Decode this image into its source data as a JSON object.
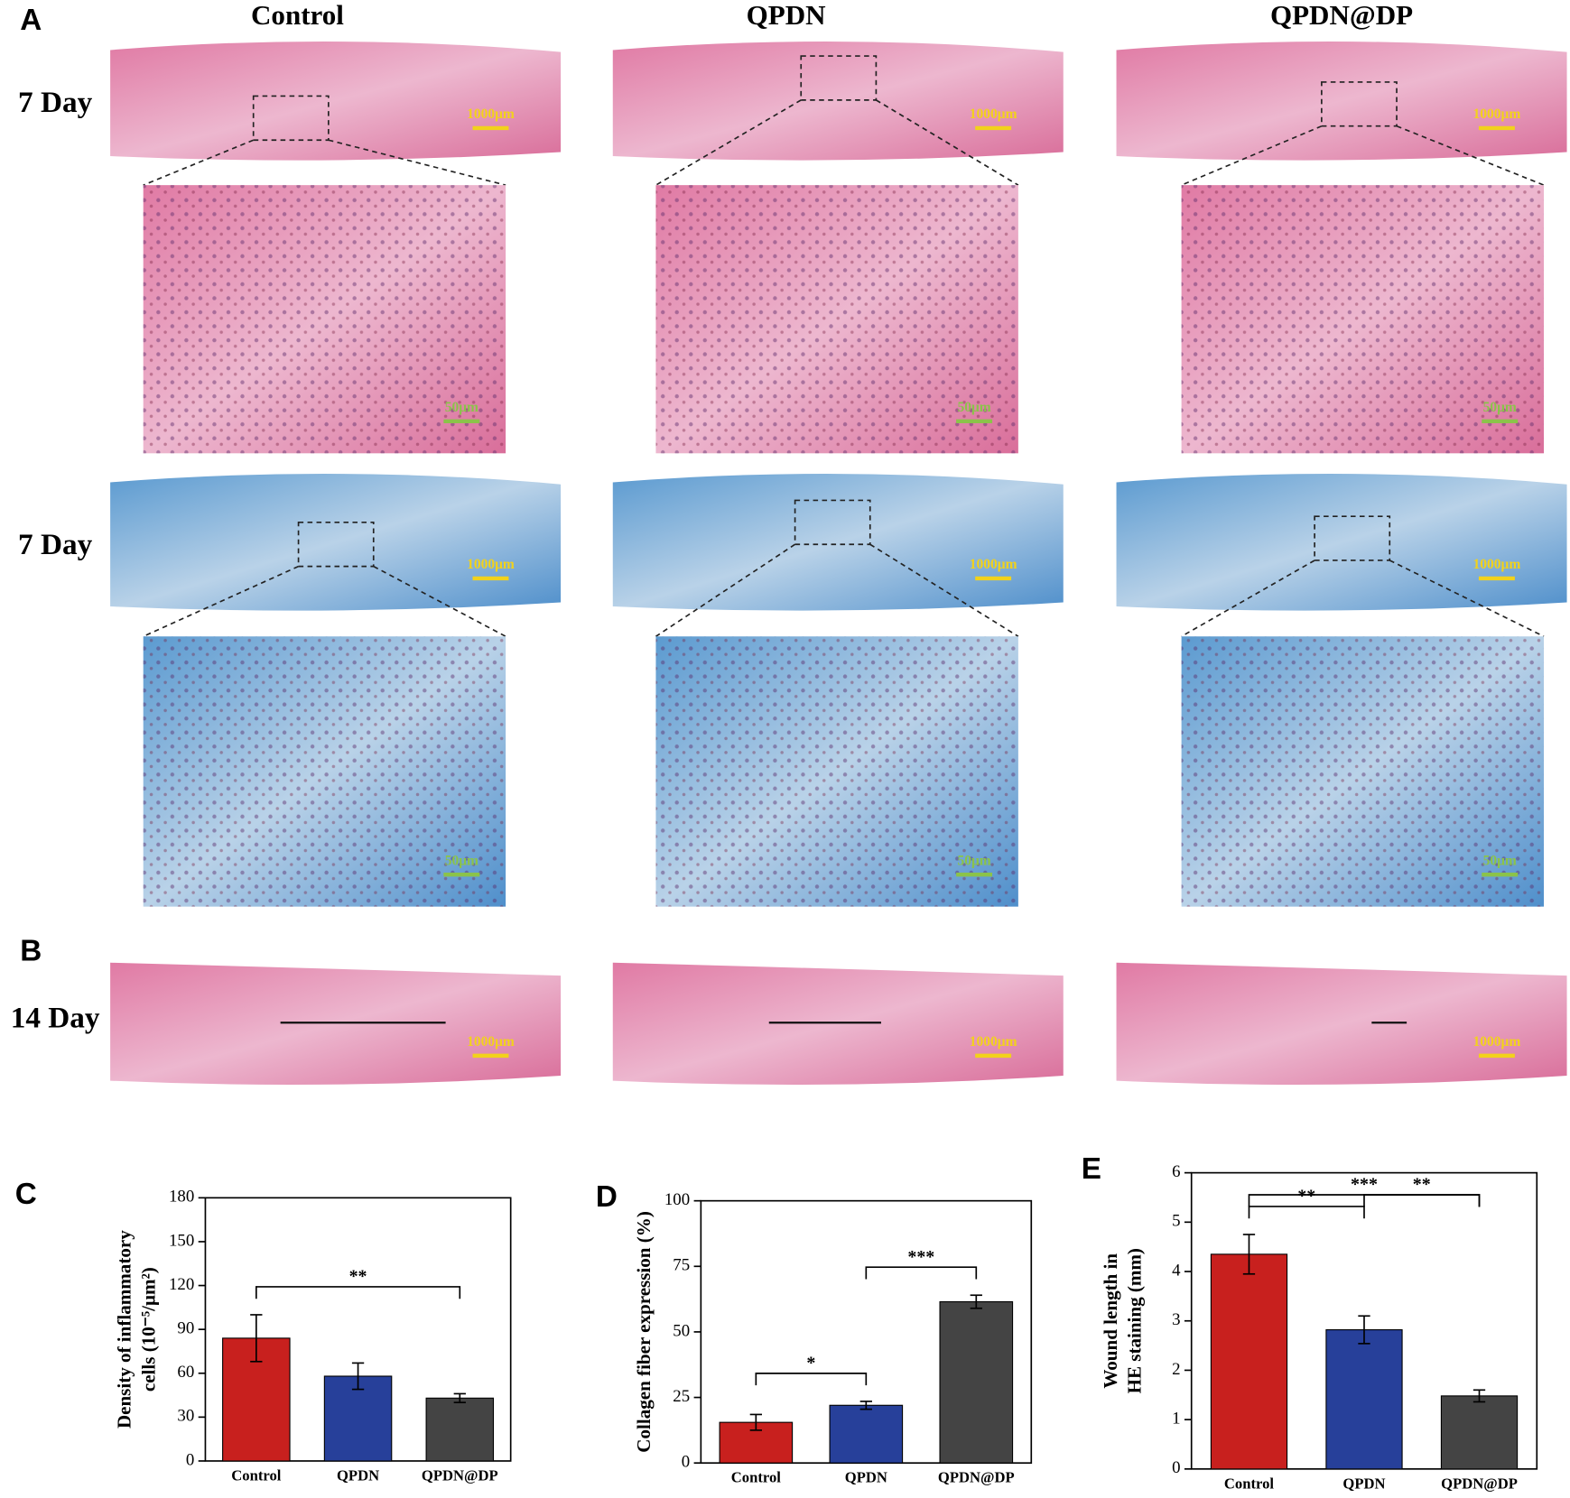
{
  "figure": {
    "panel_labels": [
      "A",
      "B"
    ],
    "columns": [
      "Control",
      "QPDN",
      "QPDN@DP"
    ],
    "rows": [
      "7 Day",
      "7 Day",
      "14 Day"
    ],
    "scale_bar_large": "1000μm",
    "scale_bar_small": "50μm"
  },
  "chart_data": [
    {
      "type": "bar",
      "panel": "C",
      "ylabel": [
        "Density of inflammatory",
        "cells (10⁻⁵/μm²)"
      ],
      "categories": [
        "Control",
        "QPDN",
        "QPDN@DP"
      ],
      "values": [
        84,
        58,
        43
      ],
      "errors": [
        16,
        9,
        3
      ],
      "colors": [
        "#c8201e",
        "#27409a",
        "#444444"
      ],
      "ylim": [
        0,
        180
      ],
      "yticks": [
        0,
        30,
        60,
        90,
        120,
        150,
        180
      ],
      "brackets": [
        {
          "label": "**",
          "between": [
            "Control",
            "QPDN@DP"
          ]
        }
      ]
    },
    {
      "type": "bar",
      "panel": "D",
      "ylabel": [
        "Collagen fiber expression (%)"
      ],
      "categories": [
        "Control",
        "QPDN",
        "QPDN@DP"
      ],
      "values": [
        15.5,
        22,
        61.5
      ],
      "errors": [
        3,
        1.5,
        2.5
      ],
      "colors": [
        "#c8201e",
        "#27409a",
        "#444444"
      ],
      "ylim": [
        0,
        100
      ],
      "yticks": [
        0,
        25,
        50,
        75,
        100
      ],
      "brackets": [
        {
          "label": "*",
          "between": [
            "Control",
            "QPDN"
          ]
        },
        {
          "label": "***",
          "between": [
            "QPDN",
            "QPDN@DP"
          ]
        }
      ]
    },
    {
      "type": "bar",
      "panel": "E",
      "ylabel": [
        "Wound length in",
        "HE staining (mm)"
      ],
      "categories": [
        "Control",
        "QPDN",
        "QPDN@DP"
      ],
      "values": [
        4.35,
        2.82,
        1.48
      ],
      "errors": [
        0.4,
        0.28,
        0.12
      ],
      "colors": [
        "#c8201e",
        "#27409a",
        "#444444"
      ],
      "ylim": [
        0,
        6
      ],
      "yticks": [
        0,
        1,
        2,
        3,
        4,
        5,
        6
      ],
      "brackets": [
        {
          "label": "**",
          "between": [
            "Control",
            "QPDN"
          ]
        },
        {
          "label": "***",
          "between": [
            "Control",
            "QPDN@DP"
          ]
        },
        {
          "label": "**",
          "between": [
            "QPDN",
            "QPDN@DP"
          ]
        }
      ]
    }
  ]
}
